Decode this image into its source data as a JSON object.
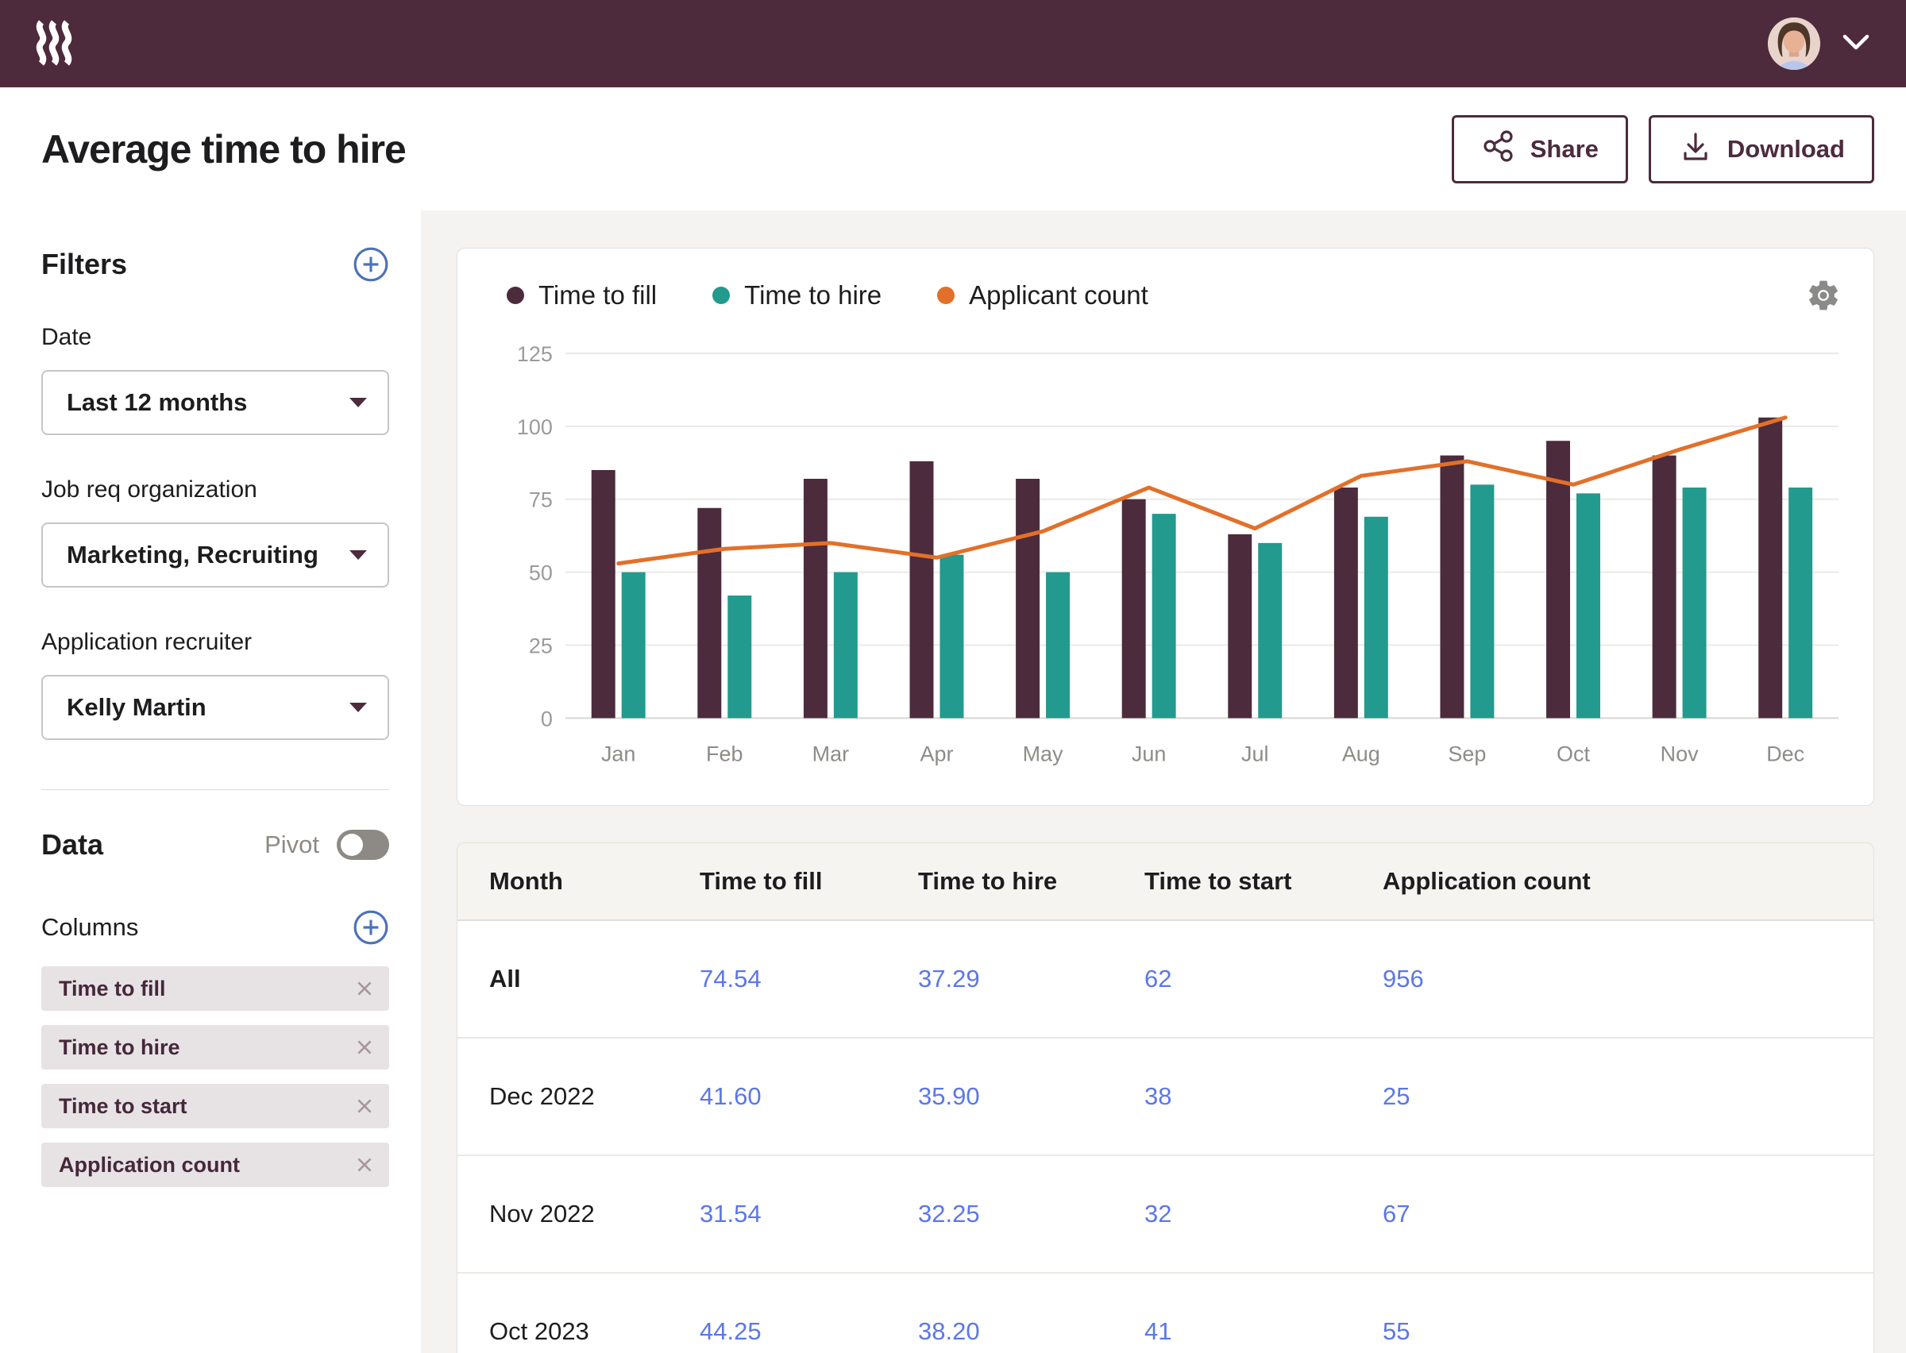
{
  "navbar": {
    "logo_name": "rippling-logo",
    "avatar_name": "user-avatar"
  },
  "header": {
    "title": "Average time to hire",
    "share_label": "Share",
    "download_label": "Download"
  },
  "sidebar": {
    "filters_title": "Filters",
    "fields": [
      {
        "label": "Date",
        "value": "Last 12 months"
      },
      {
        "label": "Job req organization",
        "value": "Marketing, Recruiting"
      },
      {
        "label": "Application recruiter",
        "value": "Kelly Martin"
      }
    ],
    "data_title": "Data",
    "pivot_label": "Pivot",
    "pivot_on": false,
    "columns_title": "Columns",
    "column_chips": [
      "Time to fill",
      "Time to hire",
      "Time to start",
      "Application count"
    ]
  },
  "chart_data": {
    "type": "combo",
    "categories": [
      "Jan",
      "Feb",
      "Mar",
      "Apr",
      "May",
      "Jun",
      "Jul",
      "Aug",
      "Sep",
      "Oct",
      "Nov",
      "Dec"
    ],
    "series": [
      {
        "name": "Time to fill",
        "type": "bar",
        "color": "#4C2B3C",
        "values": [
          85,
          72,
          82,
          88,
          82,
          75,
          63,
          79,
          90,
          95,
          90,
          103
        ]
      },
      {
        "name": "Time to hire",
        "type": "bar",
        "color": "#229A8E",
        "values": [
          50,
          42,
          50,
          56,
          50,
          70,
          60,
          69,
          80,
          77,
          79,
          79
        ]
      },
      {
        "name": "Applicant count",
        "type": "line",
        "color": "#E2702A",
        "values": [
          53,
          58,
          60,
          55,
          64,
          79,
          65,
          83,
          88,
          80,
          92,
          103
        ]
      }
    ],
    "ylim": [
      0,
      125
    ],
    "yticks": [
      0,
      25,
      50,
      75,
      100,
      125
    ],
    "grid": true,
    "legend_position": "top-left"
  },
  "table": {
    "headers": [
      "Month",
      "Time to fill",
      "Time to hire",
      "Time to start",
      "Application count"
    ],
    "rows": [
      {
        "month": "All",
        "bold": true,
        "values": [
          "74.54",
          "37.29",
          "62",
          "956"
        ]
      },
      {
        "month": "Dec 2022",
        "bold": false,
        "values": [
          "41.60",
          "35.90",
          "38",
          "25"
        ]
      },
      {
        "month": "Nov 2022",
        "bold": false,
        "values": [
          "31.54",
          "32.25",
          "32",
          "67"
        ]
      },
      {
        "month": "Oct 2023",
        "bold": false,
        "values": [
          "44.25",
          "38.20",
          "41",
          "55"
        ]
      }
    ]
  },
  "colors": {
    "navbar_bg": "#4E2B3C",
    "accent_plum": "#4C2B3C",
    "teal": "#229A8E",
    "orange": "#E2702A",
    "link_blue": "#5C77E7",
    "icon_blue": "#4973B8",
    "muted_gray": "#8D8A86",
    "content_bg": "#F4F3F1",
    "chip_bg": "#E7E3E4"
  }
}
